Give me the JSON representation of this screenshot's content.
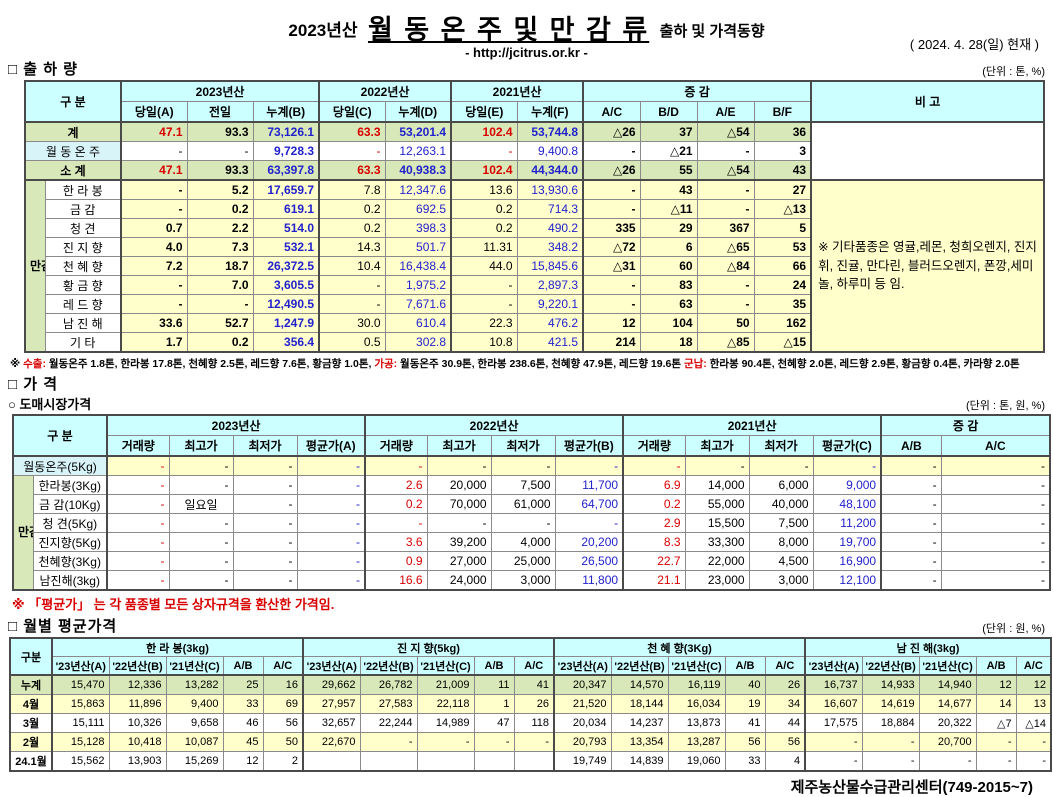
{
  "header": {
    "year_prefix": "2023년산",
    "title_main": "월 동 온 주 및 만 감 류",
    "title_suffix": "출하 및 가격동향",
    "url": "- http://jcitrus.or.kr -",
    "date": "( 2024.  4. 28(일) 현재 )"
  },
  "shipment": {
    "section_title": "□ 출 하 량",
    "unit": "(단위 : 톤, %)",
    "head": {
      "gubun": "구      분",
      "groups": [
        "2023년산",
        "2022년산",
        "2021년산",
        "증       감"
      ],
      "cols": [
        "당일(A)",
        "전일",
        "누계(B)",
        "당일(C)",
        "누계(D)",
        "당일(E)",
        "누계(F)",
        "A/C",
        "B/D",
        "A/E",
        "B/F"
      ],
      "bigo": "비 고"
    },
    "group_label": "만감류",
    "rows": [
      {
        "label": "계",
        "type": "total",
        "cells": [
          "47.1",
          "93.3",
          "73,126.1",
          "63.3",
          "53,201.4",
          "102.4",
          "53,744.8",
          "△26",
          "37",
          "△54",
          "36"
        ]
      },
      {
        "label": "월 동 온 주",
        "type": "wd",
        "cells": [
          "-",
          "-",
          "9,728.3",
          "-",
          "12,263.1",
          "-",
          "9,400.8",
          "-",
          "△21",
          "-",
          "3"
        ]
      },
      {
        "label": "소    계",
        "type": "total",
        "cells": [
          "47.1",
          "93.3",
          "63,397.8",
          "63.3",
          "40,938.3",
          "102.4",
          "44,344.0",
          "△26",
          "55",
          "△54",
          "43"
        ]
      },
      {
        "label": "한 라 봉",
        "type": "item",
        "cells": [
          "-",
          "5.2",
          "17,659.7",
          "7.8",
          "12,347.6",
          "13.6",
          "13,930.6",
          "-",
          "43",
          "-",
          "27"
        ]
      },
      {
        "label": "금    감",
        "type": "item",
        "cells": [
          "-",
          "0.2",
          "619.1",
          "0.2",
          "692.5",
          "0.2",
          "714.3",
          "-",
          "△11",
          "-",
          "△13"
        ]
      },
      {
        "label": "청    견",
        "type": "item",
        "cells": [
          "0.7",
          "2.2",
          "514.0",
          "0.2",
          "398.3",
          "0.2",
          "490.2",
          "335",
          "29",
          "367",
          "5"
        ]
      },
      {
        "label": "진 지 향",
        "type": "item",
        "cells": [
          "4.0",
          "7.3",
          "532.1",
          "14.3",
          "501.7",
          "11.31",
          "348.2",
          "△72",
          "6",
          "△65",
          "53"
        ]
      },
      {
        "label": "천 혜 향",
        "type": "item",
        "cells": [
          "7.2",
          "18.7",
          "26,372.5",
          "10.4",
          "16,438.4",
          "44.0",
          "15,845.6",
          "△31",
          "60",
          "△84",
          "66"
        ]
      },
      {
        "label": "황 금 향",
        "type": "item",
        "cells": [
          "-",
          "7.0",
          "3,605.5",
          "-",
          "1,975.2",
          "-",
          "2,897.3",
          "-",
          "83",
          "-",
          "24"
        ]
      },
      {
        "label": "레 드 향",
        "type": "item",
        "cells": [
          "-",
          "-",
          "12,490.5",
          "-",
          "7,671.6",
          "-",
          "9,220.1",
          "-",
          "63",
          "-",
          "35"
        ]
      },
      {
        "label": "남 진 해",
        "type": "item",
        "cells": [
          "33.6",
          "52.7",
          "1,247.9",
          "30.0",
          "610.4",
          "22.3",
          "476.2",
          "12",
          "104",
          "50",
          "162"
        ]
      },
      {
        "label": "기    타",
        "type": "item",
        "cells": [
          "1.7",
          "0.2",
          "356.4",
          "0.5",
          "302.8",
          "10.8",
          "421.5",
          "214",
          "18",
          "△85",
          "△15"
        ]
      }
    ],
    "bigo_note": "※ 기타품종은 영귤,레몬, 청희오렌지, 진지휘, 진귤, 만다린, 블러드오렌지, 폰깡,세미놀, 하루미 등 임.",
    "footnote": {
      "prefix": "※ ",
      "label1": "수출:",
      "text1": " 월동온주 1.8톤, 한라봉 17.8톤, 천혜향 2.5톤, 레드향 7.6톤, 황금향 1.0톤, ",
      "label2": "가공:",
      "text2": " 월동온주 30.9톤, 한라봉 238.6톤, 천혜향 47.9톤, 레드향 19.6톤 ",
      "label3": "군납:",
      "text3": " 한라봉 90.4톤, 천혜향 2.0톤, 레드향 2.9톤, 황금향 0.4톤, 카라향 2.0톤"
    }
  },
  "price": {
    "section_title": "□ 가    격",
    "sub_title": "○ 도매시장가격",
    "unit": "(단위 : 톤, 원, %)",
    "head": {
      "gubun": "구      분",
      "groups": [
        "2023년산",
        "2022년산",
        "2021년산",
        "증    감"
      ],
      "cols": [
        "거래량",
        "최고가",
        "최저가",
        "평균가(A)",
        "거래량",
        "최고가",
        "최저가",
        "평균가(B)",
        "거래량",
        "최고가",
        "최저가",
        "평균가(C)",
        "A/B",
        "A/C"
      ]
    },
    "group_label": "만감류",
    "rows": [
      {
        "label": "월동온주(5Kg)",
        "type": "wd",
        "cells": [
          "-",
          "-",
          "-",
          "-",
          "-",
          "-",
          "-",
          "-",
          "-",
          "-",
          "-",
          "-",
          "-",
          "-"
        ]
      },
      {
        "label": "한라봉(3Kg)",
        "type": "item",
        "cells": [
          "-",
          "-",
          "-",
          "-",
          "2.6",
          "20,000",
          "7,500",
          "11,700",
          "6.9",
          "14,000",
          "6,000",
          "9,000",
          "-",
          "-"
        ]
      },
      {
        "label": "금 감(10Kg)",
        "type": "item",
        "cells": [
          "-",
          "일요일",
          "-",
          "-",
          "0.2",
          "70,000",
          "61,000",
          "64,700",
          "0.2",
          "55,000",
          "40,000",
          "48,100",
          "-",
          "-"
        ]
      },
      {
        "label": "청   견(5Kg)",
        "type": "item",
        "cells": [
          "-",
          "-",
          "-",
          "-",
          "-",
          "-",
          "-",
          "-",
          "2.9",
          "15,500",
          "7,500",
          "11,200",
          "-",
          "-"
        ]
      },
      {
        "label": "진지향(5Kg)",
        "type": "item",
        "cells": [
          "-",
          "-",
          "-",
          "-",
          "3.6",
          "39,200",
          "4,000",
          "20,200",
          "8.3",
          "33,300",
          "8,000",
          "19,700",
          "-",
          "-"
        ]
      },
      {
        "label": "천혜향(3Kg)",
        "type": "item",
        "cells": [
          "-",
          "-",
          "-",
          "-",
          "0.9",
          "27,000",
          "25,000",
          "26,500",
          "22.7",
          "22,000",
          "4,500",
          "16,900",
          "-",
          "-"
        ]
      },
      {
        "label": "남진해(3kg)",
        "type": "item",
        "cells": [
          "-",
          "-",
          "-",
          "-",
          "16.6",
          "24,000",
          "3,000",
          "11,800",
          "21.1",
          "23,000",
          "3,000",
          "12,100",
          "-",
          "-"
        ]
      }
    ],
    "note": "※ 「평균가」 는 각 품종별 모든 상자규격을 환산한 가격임."
  },
  "monthly": {
    "section_title": "□ 월별 평균가격",
    "unit": "(단위 : 원, %)",
    "head": {
      "gubun": "구분",
      "groups": [
        "한  라  봉(3kg)",
        "진 지 향(5kg)",
        "천 혜 향(3Kg)",
        "남 진 해(3kg)"
      ],
      "subcols": [
        "'23년산(A)",
        "'22년산(B)",
        "'21년산(C)",
        "A/B",
        "A/C"
      ]
    },
    "rows": [
      {
        "label": "누계",
        "bg": "green",
        "cells": [
          "15,470",
          "12,336",
          "13,282",
          "25",
          "16",
          "29,662",
          "26,782",
          "21,009",
          "11",
          "41",
          "20,347",
          "14,570",
          "16,119",
          "40",
          "26",
          "16,737",
          "14,933",
          "14,940",
          "12",
          "12"
        ]
      },
      {
        "label": "4월",
        "bg": "yellow",
        "cells": [
          "15,863",
          "11,896",
          "9,400",
          "33",
          "69",
          "27,957",
          "27,583",
          "22,118",
          "1",
          "26",
          "21,520",
          "18,144",
          "16,034",
          "19",
          "34",
          "16,607",
          "14,619",
          "14,677",
          "14",
          "13"
        ]
      },
      {
        "label": "3월",
        "bg": "white",
        "cells": [
          "15,111",
          "10,326",
          "9,658",
          "46",
          "56",
          "32,657",
          "22,244",
          "14,989",
          "47",
          "118",
          "20,034",
          "14,237",
          "13,873",
          "41",
          "44",
          "17,575",
          "18,884",
          "20,322",
          "△7",
          "△14"
        ]
      },
      {
        "label": "2월",
        "bg": "yellow",
        "cells": [
          "15,128",
          "10,418",
          "10,087",
          "45",
          "50",
          "22,670",
          "-",
          "-",
          "-",
          "-",
          "20,793",
          "13,354",
          "13,287",
          "56",
          "56",
          "-",
          "-",
          "20,700",
          "-",
          "-"
        ]
      },
      {
        "label": "24.1월",
        "bg": "white",
        "cells": [
          "15,562",
          "13,903",
          "15,269",
          "12",
          "2",
          "",
          "",
          "",
          "",
          "",
          "19,749",
          "14,839",
          "19,060",
          "33",
          "4",
          "-",
          "-",
          "-",
          "-",
          "-"
        ]
      }
    ]
  },
  "footer": {
    "org": "제주농산물수급관리센터(749-2015~7)"
  }
}
